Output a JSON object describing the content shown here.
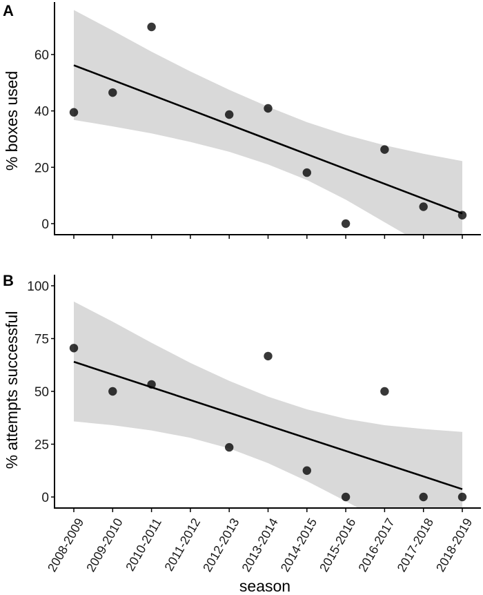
{
  "chart_data": [
    {
      "type": "scatter",
      "panel_label": "A",
      "title": "",
      "xlabel": "",
      "ylabel": "% boxes used",
      "ylim": [
        -3,
        77
      ],
      "yticks": [
        0,
        20,
        40,
        60
      ],
      "categories": [
        "2008-2009",
        "2009-2010",
        "2010-2011",
        "2011-2012",
        "2012-2013",
        "2013-2014",
        "2014-2015",
        "2015-2016",
        "2016-2017",
        "2017-2018",
        "2018-2019"
      ],
      "points": [
        {
          "x": "2008-2009",
          "y": 39.5
        },
        {
          "x": "2009-2010",
          "y": 46.5
        },
        {
          "x": "2010-2011",
          "y": 69.8
        },
        {
          "x": "2012-2013",
          "y": 38.7
        },
        {
          "x": "2013-2014",
          "y": 40.9
        },
        {
          "x": "2014-2015",
          "y": 18.1
        },
        {
          "x": "2015-2016",
          "y": 0
        },
        {
          "x": "2016-2017",
          "y": 26.3
        },
        {
          "x": "2017-2018",
          "y": 6.0
        },
        {
          "x": "2018-2019",
          "y": 3.0
        }
      ],
      "fit_line": {
        "start": {
          "x": "2008-2009",
          "y": 56.2
        },
        "end": {
          "x": "2018-2019",
          "y": 3.6
        }
      },
      "confidence_band": {
        "x": [
          "2008-2009",
          "2009-2010",
          "2010-2011",
          "2011-2012",
          "2012-2013",
          "2013-2014",
          "2014-2015",
          "2015-2016",
          "2016-2017",
          "2017-2018",
          "2018-2019"
        ],
        "upper": [
          75.8,
          68.5,
          61.0,
          54.0,
          47.5,
          41.5,
          36.0,
          31.5,
          27.8,
          24.8,
          22.2
        ],
        "lower": [
          36.8,
          34.5,
          32.0,
          29.0,
          25.5,
          21.0,
          15.5,
          8.5,
          0.5,
          -7.5,
          -16.0
        ]
      },
      "grid": false
    },
    {
      "type": "scatter",
      "panel_label": "B",
      "title": "",
      "xlabel": "season",
      "ylabel": "% attempts successful",
      "ylim": [
        -5,
        105
      ],
      "yticks": [
        0,
        25,
        50,
        75,
        100
      ],
      "categories": [
        "2008-2009",
        "2009-2010",
        "2010-2011",
        "2011-2012",
        "2012-2013",
        "2013-2014",
        "2014-2015",
        "2015-2016",
        "2016-2017",
        "2017-2018",
        "2018-2019"
      ],
      "points": [
        {
          "x": "2008-2009",
          "y": 70.5
        },
        {
          "x": "2009-2010",
          "y": 50.0
        },
        {
          "x": "2010-2011",
          "y": 53.3
        },
        {
          "x": "2012-2013",
          "y": 23.5
        },
        {
          "x": "2013-2014",
          "y": 66.7
        },
        {
          "x": "2014-2015",
          "y": 12.5
        },
        {
          "x": "2015-2016",
          "y": 0
        },
        {
          "x": "2016-2017",
          "y": 50.0
        },
        {
          "x": "2017-2018",
          "y": 0
        },
        {
          "x": "2018-2019",
          "y": 0
        }
      ],
      "fit_line": {
        "start": {
          "x": "2008-2009",
          "y": 64.0
        },
        "end": {
          "x": "2018-2019",
          "y": 3.7
        }
      },
      "confidence_band": {
        "x": [
          "2008-2009",
          "2009-2010",
          "2010-2011",
          "2011-2012",
          "2012-2013",
          "2013-2014",
          "2014-2015",
          "2015-2016",
          "2016-2017",
          "2017-2018",
          "2018-2019"
        ],
        "upper": [
          92.5,
          83.0,
          73.0,
          63.5,
          55.0,
          47.5,
          41.5,
          37.0,
          34.0,
          32.2,
          30.8
        ],
        "lower": [
          35.8,
          34.0,
          31.5,
          28.0,
          23.0,
          16.0,
          7.5,
          -2.0,
          -12.0,
          -22.0,
          -33.0
        ]
      },
      "grid": false
    }
  ],
  "colors": {
    "band": "#d9d9d9",
    "line": "#000000",
    "point": "#000000",
    "axis": "#000000"
  }
}
